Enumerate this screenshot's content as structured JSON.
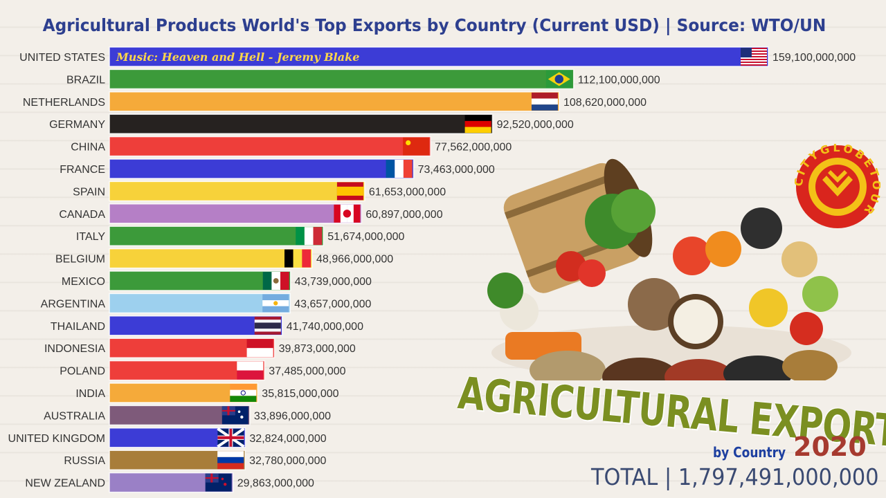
{
  "title": "Agricultural Products World's Top Exports by Country (Current USD) | Source: WTO/UN",
  "music": "Music: Heaven and Hell - Jeremy Blake",
  "headline": "AGRICULTURAL EXPORTS",
  "subline": "by Country",
  "year": "2020",
  "total": "TOTAL | 1,797,491,000,000",
  "logo_text": "CITYGLOBETOUR",
  "chart_data": {
    "type": "bar",
    "orientation": "horizontal",
    "title": "Agricultural Products World's Top Exports by Country (Current USD) | Source: WTO/UN",
    "categories": [
      "UNITED STATES",
      "BRAZIL",
      "NETHERLANDS",
      "GERMANY",
      "CHINA",
      "FRANCE",
      "SPAIN",
      "CANADA",
      "ITALY",
      "BELGIUM",
      "MEXICO",
      "ARGENTINA",
      "THAILAND",
      "INDONESIA",
      "POLAND",
      "INDIA",
      "AUSTRALIA",
      "UNITED KINGDOM",
      "RUSSIA",
      "NEW ZEALAND"
    ],
    "values": [
      159100000000,
      112100000000,
      108620000000,
      92520000000,
      77562000000,
      73463000000,
      61653000000,
      60897000000,
      51674000000,
      48966000000,
      43739000000,
      43657000000,
      41740000000,
      39873000000,
      37485000000,
      35815000000,
      33896000000,
      32824000000,
      32780000000,
      29863000000
    ],
    "labels": [
      "159,100,000,000",
      "112,100,000,000",
      "108,620,000,000",
      "92,520,000,000",
      "77,562,000,000",
      "73,463,000,000",
      "61,653,000,000",
      "60,897,000,000",
      "51,674,000,000",
      "48,966,000,000",
      "43,739,000,000",
      "43,657,000,000",
      "41,740,000,000",
      "39,873,000,000",
      "37,485,000,000",
      "35,815,000,000",
      "33,896,000,000",
      "32,824,000,000",
      "32,780,000,000",
      "29,863,000,000"
    ],
    "colors": [
      "#3c3cd6",
      "#3c9a3a",
      "#f5aa3a",
      "#262220",
      "#ee3e3a",
      "#3c3cd6",
      "#f7d23a",
      "#b57fc6",
      "#3c9a3a",
      "#f7d23a",
      "#3c9a3a",
      "#9dd0ee",
      "#3c3cd6",
      "#ee3e3a",
      "#ee3e3a",
      "#f5aa3a",
      "#7e5a7a",
      "#3c3cd6",
      "#a87d3a",
      "#9a80c6"
    ],
    "flags": [
      "us",
      "br",
      "nl",
      "de",
      "cn",
      "fr",
      "es",
      "ca",
      "it",
      "be",
      "mx",
      "ar",
      "th",
      "id",
      "pl",
      "in",
      "au",
      "gb",
      "ru",
      "nz"
    ],
    "xlim": [
      0,
      159100000000
    ]
  }
}
